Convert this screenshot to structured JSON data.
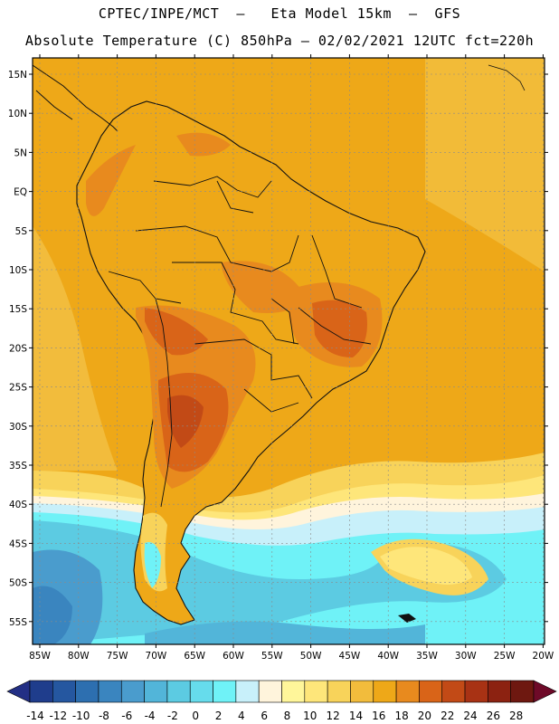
{
  "header": {
    "line1": "CPTEC/INPE/MCT  –   Eta Model 15km  –  GFS",
    "line2": "Absolute Temperature (C) 850hPa – 02/02/2021 12UTC fct=220h"
  },
  "map": {
    "lat_labels": [
      "15N",
      "10N",
      "5N",
      "EQ",
      "5S",
      "10S",
      "15S",
      "20S",
      "25S",
      "30S",
      "35S",
      "40S",
      "45S",
      "50S",
      "55S"
    ],
    "lon_labels": [
      "85W",
      "80W",
      "75W",
      "70W",
      "65W",
      "60W",
      "55W",
      "50W",
      "45W",
      "40W",
      "35W",
      "30W",
      "25W",
      "20W"
    ]
  },
  "colorbar": {
    "labels": [
      "-14",
      "-12",
      "-10",
      "-8",
      "-6",
      "-4",
      "-2",
      "0",
      "2",
      "4",
      "6",
      "8",
      "10",
      "12",
      "14",
      "16",
      "18",
      "20",
      "22",
      "24",
      "26",
      "28"
    ],
    "colors": [
      "#1f3d8c",
      "#2557a0",
      "#2d6fb0",
      "#3a85bf",
      "#4a9ccd",
      "#52b5d9",
      "#5ccbe2",
      "#66dcec",
      "#6ff2f7",
      "#c8f0fa",
      "#fff4dc",
      "#fff69a",
      "#fee67a",
      "#f8d35a",
      "#f2bc3c",
      "#eea818",
      "#e88a1e",
      "#d96418",
      "#c24a16",
      "#a83214",
      "#8c2211",
      "#6e1810"
    ],
    "under_color": "#232f85",
    "over_color": "#6e0a28"
  }
}
